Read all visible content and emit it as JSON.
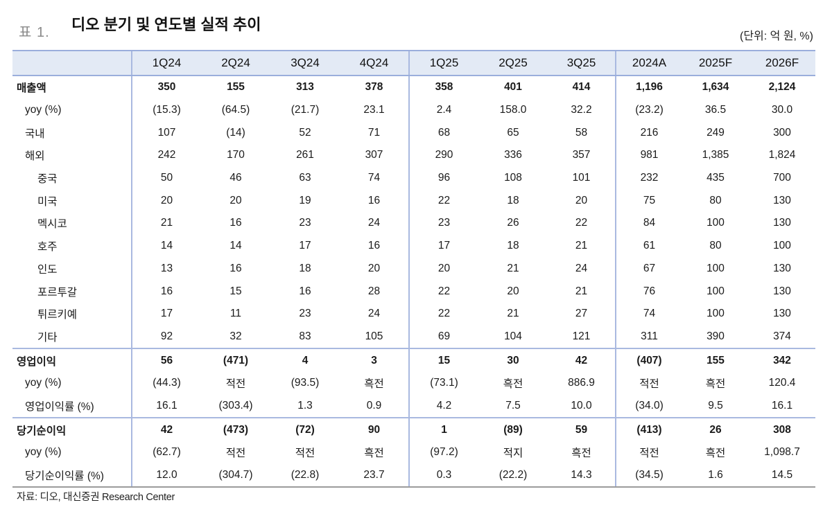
{
  "header": {
    "table_label": "표 1.",
    "title": "디오 분기 및 연도별 실적 추이",
    "unit": "(단위: 억 원, %)"
  },
  "table": {
    "columns": [
      "1Q24",
      "2Q24",
      "3Q24",
      "4Q24",
      "1Q25",
      "2Q25",
      "3Q25",
      "2024A",
      "2025F",
      "2026F"
    ],
    "rows": [
      {
        "label": "매출액",
        "values": [
          "350",
          "155",
          "313",
          "378",
          "358",
          "401",
          "414",
          "1,196",
          "1,634",
          "2,124"
        ]
      },
      {
        "label": "yoy (%)",
        "values": [
          "(15.3)",
          "(64.5)",
          "(21.7)",
          "23.1",
          "2.4",
          "158.0",
          "32.2",
          "(23.2)",
          "36.5",
          "30.0"
        ]
      },
      {
        "label": "국내",
        "values": [
          "107",
          "(14)",
          "52",
          "71",
          "68",
          "65",
          "58",
          "216",
          "249",
          "300"
        ]
      },
      {
        "label": "해외",
        "values": [
          "242",
          "170",
          "261",
          "307",
          "290",
          "336",
          "357",
          "981",
          "1,385",
          "1,824"
        ]
      },
      {
        "label": "중국",
        "values": [
          "50",
          "46",
          "63",
          "74",
          "96",
          "108",
          "101",
          "232",
          "435",
          "700"
        ]
      },
      {
        "label": "미국",
        "values": [
          "20",
          "20",
          "19",
          "16",
          "22",
          "18",
          "20",
          "75",
          "80",
          "130"
        ]
      },
      {
        "label": "멕시코",
        "values": [
          "21",
          "16",
          "23",
          "24",
          "23",
          "26",
          "22",
          "84",
          "100",
          "130"
        ]
      },
      {
        "label": "호주",
        "values": [
          "14",
          "14",
          "17",
          "16",
          "17",
          "18",
          "21",
          "61",
          "80",
          "100"
        ]
      },
      {
        "label": "인도",
        "values": [
          "13",
          "16",
          "18",
          "20",
          "20",
          "21",
          "24",
          "67",
          "100",
          "130"
        ]
      },
      {
        "label": "포르투갈",
        "values": [
          "16",
          "15",
          "16",
          "28",
          "22",
          "20",
          "21",
          "76",
          "100",
          "130"
        ]
      },
      {
        "label": "튀르키예",
        "values": [
          "17",
          "11",
          "23",
          "24",
          "22",
          "21",
          "27",
          "74",
          "100",
          "130"
        ]
      },
      {
        "label": "기타",
        "values": [
          "92",
          "32",
          "83",
          "105",
          "69",
          "104",
          "121",
          "311",
          "390",
          "374"
        ]
      },
      {
        "label": "영업이익",
        "values": [
          "56",
          "(471)",
          "4",
          "3",
          "15",
          "30",
          "42",
          "(407)",
          "155",
          "342"
        ]
      },
      {
        "label": "yoy (%)",
        "values": [
          "(44.3)",
          "적전",
          "(93.5)",
          "흑전",
          "(73.1)",
          "흑전",
          "886.9",
          "적전",
          "흑전",
          "120.4"
        ]
      },
      {
        "label": "영업이익률 (%)",
        "values": [
          "16.1",
          "(303.4)",
          "1.3",
          "0.9",
          "4.2",
          "7.5",
          "10.0",
          "(34.0)",
          "9.5",
          "16.1"
        ]
      },
      {
        "label": "당기순이익",
        "values": [
          "42",
          "(473)",
          "(72)",
          "90",
          "1",
          "(89)",
          "59",
          "(413)",
          "26",
          "308"
        ]
      },
      {
        "label": "yoy (%)",
        "values": [
          "(62.7)",
          "적전",
          "적전",
          "흑전",
          "(97.2)",
          "적지",
          "흑전",
          "적전",
          "흑전",
          "1,098.7"
        ]
      },
      {
        "label": "당기순이익률 (%)",
        "values": [
          "12.0",
          "(304.7)",
          "(22.8)",
          "23.7",
          "0.3",
          "(22.2)",
          "14.3",
          "(34.5)",
          "1.6",
          "14.5"
        ]
      }
    ]
  },
  "footer": {
    "source": "자료: 디오, 대신증권 Research Center"
  },
  "colors": {
    "header_bg": "#e3eaf5",
    "rule_blue": "#a9b9e0",
    "label_gray": "#8a8a8a"
  }
}
